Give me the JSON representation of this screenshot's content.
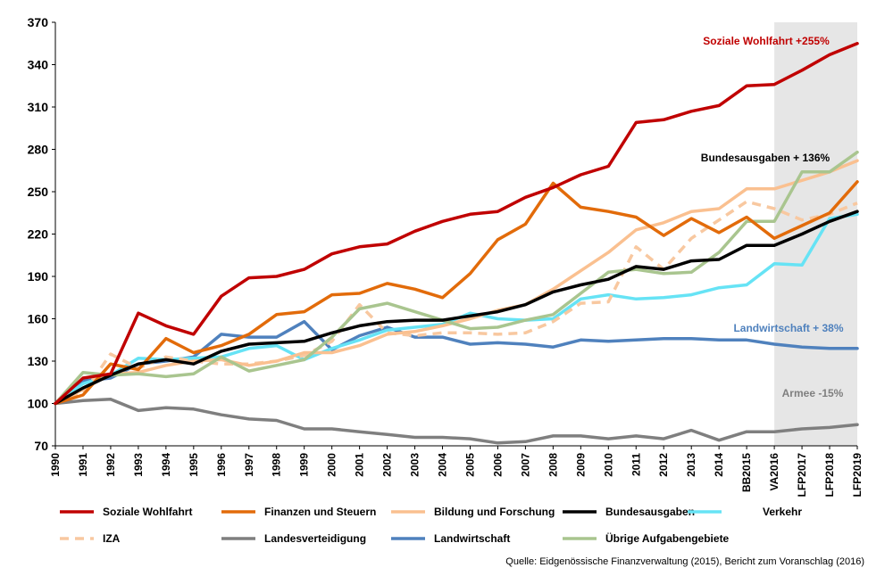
{
  "chart_data": {
    "type": "line",
    "x": [
      "1990",
      "1991",
      "1992",
      "1993",
      "1994",
      "1995",
      "1996",
      "1997",
      "1998",
      "1999",
      "2000",
      "2001",
      "2002",
      "2003",
      "2004",
      "2005",
      "2006",
      "2007",
      "2008",
      "2009",
      "2010",
      "2011",
      "2012",
      "2013",
      "2014",
      "BB2015",
      "VA2016",
      "LFP2017",
      "LFP2018",
      "LFP2019"
    ],
    "ylim": [
      70,
      370
    ],
    "yticks": [
      70,
      100,
      130,
      160,
      190,
      220,
      250,
      280,
      310,
      340,
      370
    ],
    "forecast_start_index": 26,
    "forecast_color": "#e6e6e6",
    "series": [
      {
        "name": "Soziale Wohlfahrt",
        "color": "#c00000",
        "dash": false,
        "values": [
          100,
          118,
          121,
          164,
          155,
          149,
          176,
          189,
          190,
          195,
          206,
          211,
          213,
          222,
          229,
          234,
          236,
          246,
          253,
          262,
          268,
          299,
          301,
          307,
          311,
          325,
          326,
          336,
          347,
          355
        ]
      },
      {
        "name": "Finanzen und Steuern",
        "color": "#e26b0a",
        "dash": false,
        "values": [
          100,
          106,
          128,
          124,
          146,
          136,
          141,
          149,
          163,
          165,
          177,
          178,
          185,
          181,
          175,
          192,
          216,
          227,
          256,
          239,
          236,
          232,
          219,
          231,
          221,
          232,
          217,
          226,
          235,
          257
        ]
      },
      {
        "name": "Bildung und Forschung",
        "color": "#fac090",
        "dash": false,
        "values": [
          100,
          110,
          121,
          122,
          127,
          130,
          131,
          127,
          130,
          136,
          136,
          141,
          149,
          151,
          155,
          160,
          166,
          170,
          181,
          194,
          207,
          223,
          228,
          236,
          238,
          252,
          252,
          258,
          264,
          272
        ]
      },
      {
        "name": "Bundesausgaben",
        "color": "#000000",
        "dash": false,
        "values": [
          100,
          111,
          120,
          128,
          131,
          128,
          137,
          142,
          143,
          144,
          150,
          155,
          158,
          159,
          159,
          162,
          165,
          170,
          179,
          184,
          188,
          197,
          195,
          201,
          202,
          212,
          212,
          220,
          229,
          236
        ]
      },
      {
        "name": "Verkehr",
        "color": "#66e3f5",
        "dash": false,
        "values": [
          100,
          114,
          120,
          132,
          131,
          132,
          133,
          139,
          141,
          131,
          139,
          145,
          152,
          154,
          156,
          164,
          160,
          159,
          160,
          174,
          177,
          174,
          175,
          177,
          182,
          184,
          199,
          198,
          231,
          234
        ]
      },
      {
        "name": "IZA",
        "color": "#f8c8a0",
        "dash": true,
        "values": [
          100,
          107,
          135,
          125,
          133,
          130,
          128,
          128,
          130,
          134,
          144,
          170,
          150,
          148,
          150,
          150,
          149,
          150,
          158,
          171,
          172,
          211,
          195,
          217,
          230,
          243,
          238,
          230,
          234,
          242
        ]
      },
      {
        "name": "Landesverteidigung",
        "color": "#7f7f7f",
        "dash": false,
        "values": [
          100,
          102,
          103,
          95,
          97,
          96,
          92,
          89,
          88,
          82,
          82,
          80,
          78,
          76,
          76,
          75,
          72,
          73,
          77,
          77,
          75,
          77,
          75,
          81,
          74,
          80,
          80,
          82,
          83,
          85
        ]
      },
      {
        "name": "Landwirtschaft",
        "color": "#4f81bd",
        "dash": false,
        "values": [
          100,
          116,
          118,
          128,
          130,
          133,
          149,
          147,
          147,
          158,
          138,
          148,
          154,
          147,
          147,
          142,
          143,
          142,
          140,
          145,
          144,
          145,
          146,
          146,
          145,
          145,
          142,
          140,
          139,
          139
        ]
      },
      {
        "name": "Übrige Aufgabengebiete",
        "color": "#a9c58f",
        "dash": false,
        "values": [
          100,
          122,
          120,
          121,
          119,
          121,
          133,
          123,
          127,
          131,
          147,
          167,
          171,
          165,
          159,
          153,
          154,
          159,
          163,
          178,
          193,
          195,
          192,
          193,
          207,
          229,
          229,
          264,
          264,
          278
        ]
      }
    ],
    "annotations": [
      {
        "text": "Soziale Wohlfahrt  +255%",
        "color": "#c00000"
      },
      {
        "text": "Bundesausgaben + 136%",
        "color": "#000000"
      },
      {
        "text": "Landwirtschaft + 38%",
        "color": "#4f81bd"
      },
      {
        "text": "Armee -15%",
        "color": "#7f7f7f"
      }
    ],
    "legend_position": "bottom",
    "grid": false
  },
  "source": "Quelle: Eidgenössische Finanzverwaltung (2015), Bericht zum Voranschlag (2016)"
}
